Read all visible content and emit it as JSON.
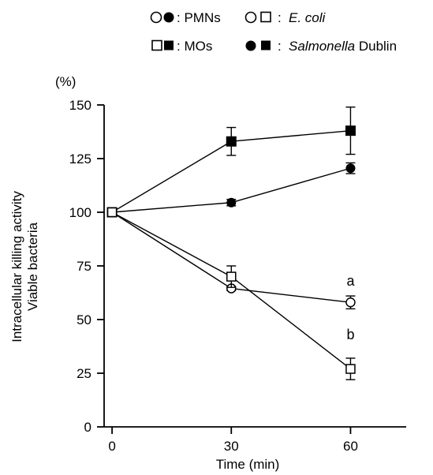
{
  "legend": {
    "row1": {
      "left_label": ": PMNs",
      "right_label_italic": "E. coli"
    },
    "row2": {
      "left_label": ": MOs",
      "right_label_italic": "Salmonella",
      "right_label_rest": " Dublin"
    },
    "colon": ":"
  },
  "chart_data": {
    "type": "line",
    "unit_label": "(%)",
    "ylabel_line1": "Intracellular killing activity",
    "ylabel_line2": "Viable bacteria",
    "xlabel": "Time (min)",
    "x": [
      0,
      30,
      60
    ],
    "xlim": [
      -2,
      74
    ],
    "ylim": [
      0,
      150
    ],
    "x_ticks": [
      0,
      30,
      60
    ],
    "y_ticks": [
      0,
      25,
      50,
      75,
      100,
      125,
      150
    ],
    "grid": false,
    "legend_placement": "top",
    "series": [
      {
        "cells": "PMNs, Salmonella Dublin",
        "marker": "circle",
        "fill": "filled",
        "values": [
          100,
          104.5,
          120.5
        ],
        "err": [
          0,
          1.5,
          2.5
        ]
      },
      {
        "cells": "MOs, Salmonella Dublin",
        "marker": "square",
        "fill": "filled",
        "values": [
          100,
          133,
          138
        ],
        "err": [
          0,
          6.5,
          11
        ]
      },
      {
        "cells": "PMNs, E. coli",
        "marker": "circle",
        "fill": "open",
        "values": [
          100,
          64.5,
          58
        ],
        "err": [
          0,
          1,
          3
        ]
      },
      {
        "cells": "MOs, E. coli",
        "marker": "square",
        "fill": "open",
        "values": [
          100,
          70,
          27
        ],
        "err": [
          0,
          5,
          5
        ]
      }
    ],
    "annotations": [
      {
        "text": "a",
        "x": 60,
        "y": 68
      },
      {
        "text": "b",
        "x": 60,
        "y": 43
      }
    ],
    "colors": {
      "ink": "#000000",
      "background": "#ffffff"
    }
  }
}
